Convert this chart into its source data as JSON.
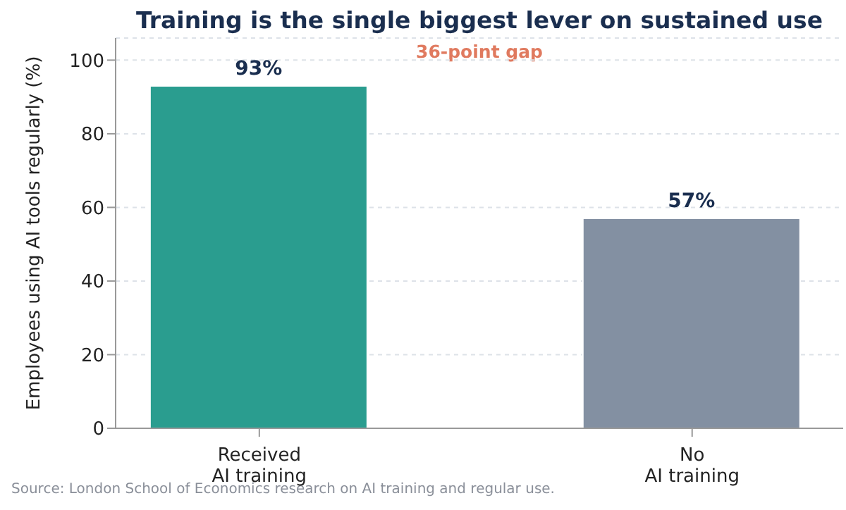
{
  "chart_data": {
    "type": "bar",
    "title": "Training is the single biggest lever on sustained use",
    "ylabel": "Employees using AI tools regularly (%)",
    "categories": [
      "Received\nAI training",
      "No\nAI training"
    ],
    "values": [
      93,
      57
    ],
    "colors": [
      "#2a9d8f",
      "#8390a2"
    ],
    "value_labels": [
      "93%",
      "57%"
    ],
    "ylim": [
      0,
      106
    ],
    "yticks": [
      0,
      20,
      40,
      60,
      80,
      100
    ],
    "grid": "y",
    "annotations": [
      "36-point gap",
      "Source: London School of Economics research on AI training and regular use."
    ]
  }
}
